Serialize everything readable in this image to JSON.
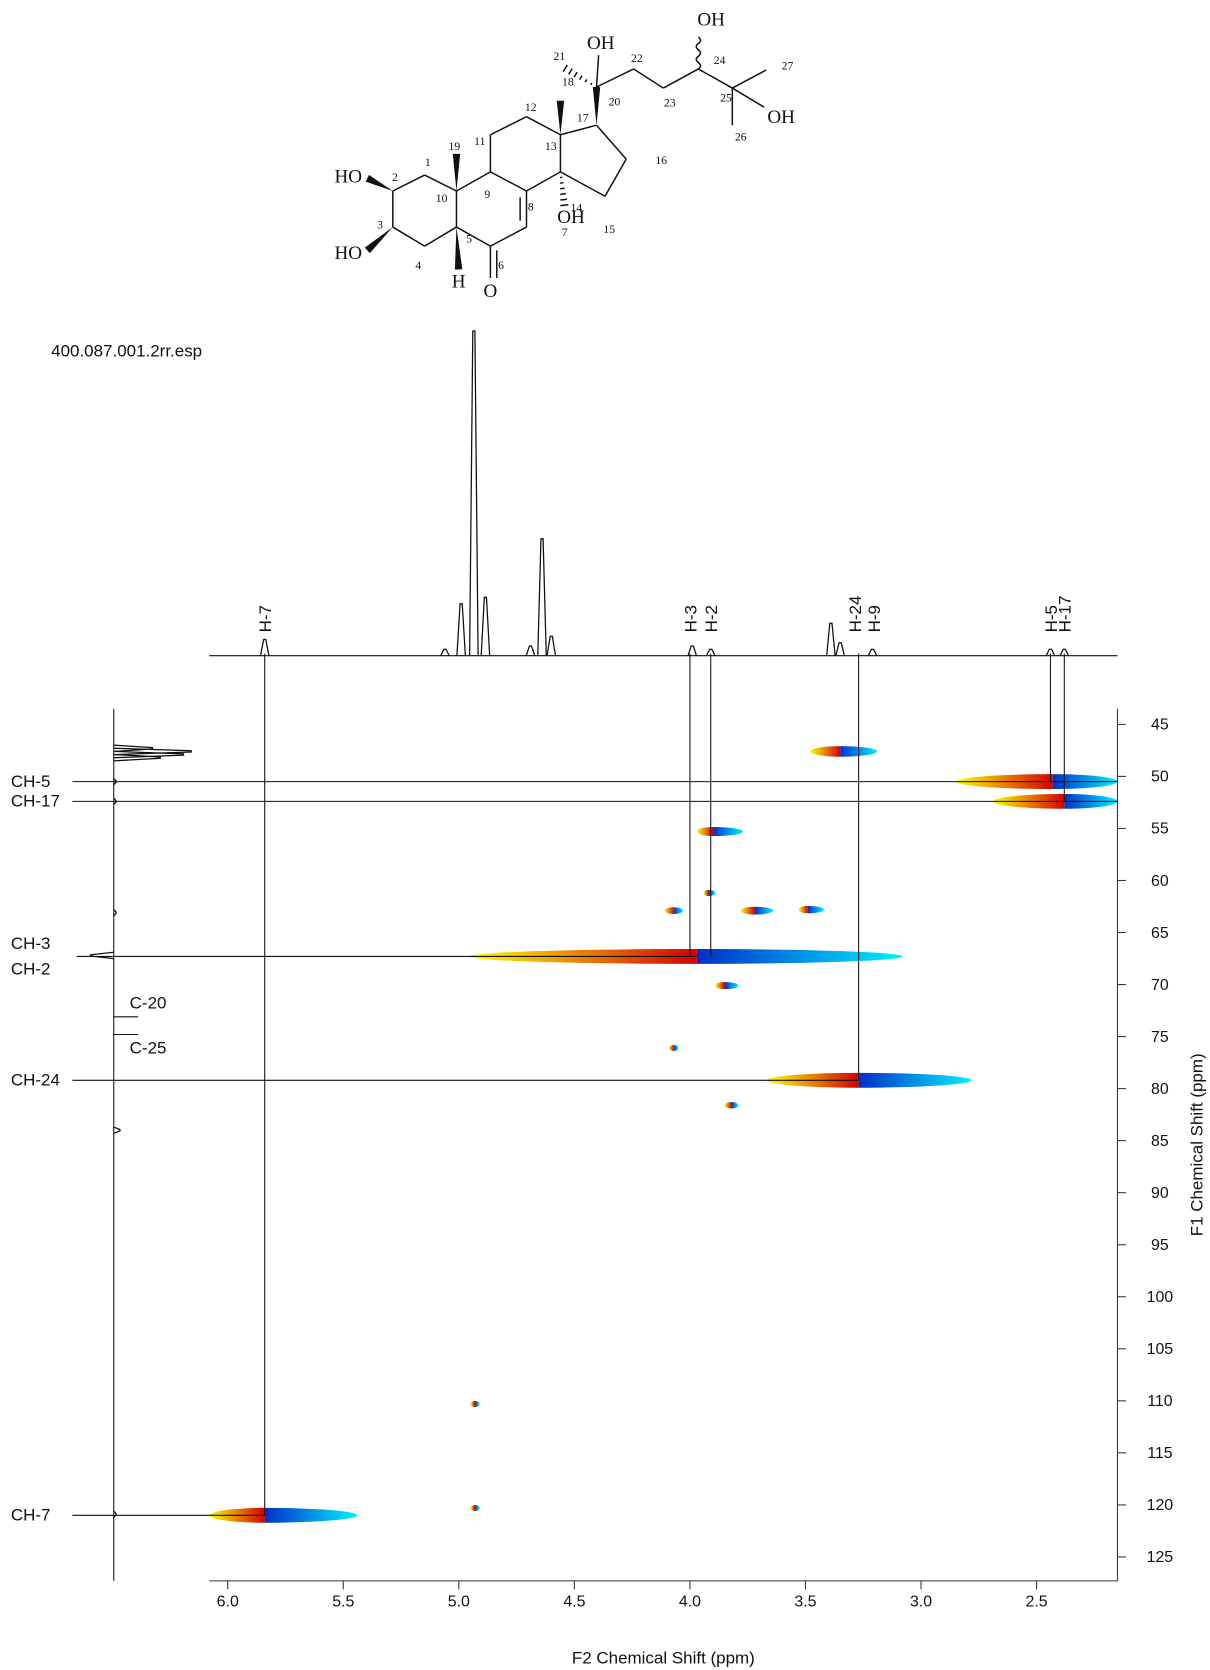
{
  "structure": {
    "labels": [
      "OH",
      "OH",
      "21",
      "18",
      "22",
      "24",
      "27",
      "20",
      "25",
      "OH",
      "23",
      "26",
      "12",
      "17",
      "11",
      "19",
      "13",
      "16",
      "1",
      "2",
      "HO",
      "9",
      "10",
      "8",
      "14",
      "15",
      "3",
      "OH",
      "7",
      "5",
      "4",
      "6",
      "HO",
      "H",
      "O"
    ]
  },
  "chart_data": {
    "type": "hsqc",
    "subtitle": "400.087.001.2rr.esp",
    "xlabel": "F2 Chemical Shift (ppm)",
    "ylabel": "F1 Chemical Shift (ppm)",
    "xlim": [
      6.08,
      2.15
    ],
    "ylim": [
      43.5,
      127.3
    ],
    "xticks": [
      {
        "value": 6,
        "label": "6.0"
      },
      5.5,
      {
        "value": 5,
        "label": "5.0"
      },
      4.5,
      {
        "value": 4,
        "label": "4.0"
      },
      3.5,
      {
        "value": 3,
        "label": "3.0"
      },
      2.5
    ],
    "yticks": [
      45,
      50,
      55,
      60,
      65,
      70,
      75,
      80,
      85,
      90,
      95,
      100,
      105,
      110,
      115,
      120,
      125
    ],
    "f2_projection": {
      "ppm": [
        5.84,
        5.06,
        4.99,
        4.935,
        4.885,
        4.69,
        4.64,
        4.6,
        3.99,
        3.91,
        3.39,
        3.35,
        3.21,
        2.44,
        2.38
      ],
      "intensity": [
        5,
        2,
        16,
        100,
        18,
        3,
        36,
        6,
        3,
        2,
        10,
        4,
        2,
        2,
        2
      ]
    },
    "f1_projection": {
      "ppm": [
        47.3,
        47.6,
        47.9,
        48.2,
        50.5,
        52.4,
        63.1,
        67.2,
        84.0,
        120.9
      ],
      "intensity": [
        50,
        100,
        90,
        60,
        3,
        3,
        3,
        -30,
        8,
        3
      ]
    },
    "positive_colors": [
      "#d40000",
      "#ffff00"
    ],
    "negative_colors": [
      "#0030c8",
      "#00f0ff"
    ],
    "cross_peaks": [
      {
        "x": 3.35,
        "y": 47.6,
        "from": 3.48,
        "to": 3.19
      },
      {
        "x": 2.43,
        "y": 50.5,
        "from": 2.85,
        "to": 2.15
      },
      {
        "x": 2.38,
        "y": 52.4,
        "from": 2.69,
        "to": 2.15
      },
      {
        "x": 3.9,
        "y": 55.3,
        "from": 3.97,
        "to": 3.77
      },
      {
        "x": 3.97,
        "y": 67.3,
        "from": 4.96,
        "to": 3.08
      },
      {
        "x": 3.27,
        "y": 79.2,
        "from": 3.67,
        "to": 2.78
      },
      {
        "x": 5.84,
        "y": 121.0,
        "from": 6.08,
        "to": 5.44
      },
      {
        "x": 4.07,
        "y": 62.9,
        "from": 4.11,
        "to": 4.03
      },
      {
        "x": 3.72,
        "y": 62.9,
        "from": 3.78,
        "to": 3.64
      },
      {
        "x": 3.49,
        "y": 62.8,
        "from": 3.53,
        "to": 3.42
      },
      {
        "x": 3.85,
        "y": 70.1,
        "from": 3.89,
        "to": 3.79
      },
      {
        "x": 4.07,
        "y": 76.1,
        "from": 4.09,
        "to": 4.05
      },
      {
        "x": 3.82,
        "y": 81.6,
        "from": 3.85,
        "to": 3.79
      },
      {
        "x": 3.92,
        "y": 61.2,
        "from": 3.94,
        "to": 3.89
      },
      {
        "x": 4.93,
        "y": 110.3,
        "from": 4.95,
        "to": 4.91
      },
      {
        "x": 4.93,
        "y": 120.3,
        "from": 4.95,
        "to": 4.91
      }
    ],
    "proton_labels": [
      {
        "label": "H-7",
        "x": 5.84,
        "y": 121.0
      },
      {
        "label": "H-3",
        "x": 4.0,
        "y": 67.3
      },
      {
        "label": "H-2",
        "x": 3.91,
        "y": 67.3
      },
      {
        "label": "H-24",
        "x": 3.27,
        "y": 79.2
      },
      {
        "label": "H-9",
        "x": 3.27,
        "y": 79.2
      },
      {
        "label": "H-5",
        "x": 2.44,
        "y": 50.5
      },
      {
        "label": "H-17",
        "x": 2.38,
        "y": 52.4
      }
    ],
    "carbon_labels": [
      {
        "label": "CH-5",
        "y": 50.5,
        "x": 2.15
      },
      {
        "label": "CH-17",
        "y": 52.4,
        "x": 2.15
      },
      {
        "label": "CH-3",
        "y": 67.3,
        "x": 3.97
      },
      {
        "label": "CH-2",
        "y": 67.3,
        "x": 3.97
      },
      {
        "label": "C-20",
        "y": 73.1
      },
      {
        "label": "C-25",
        "y": 74.8
      },
      {
        "label": "CH-24",
        "y": 79.2,
        "x": 3.27
      },
      {
        "label": "CH-7",
        "y": 121.0,
        "x": 5.84
      }
    ]
  }
}
